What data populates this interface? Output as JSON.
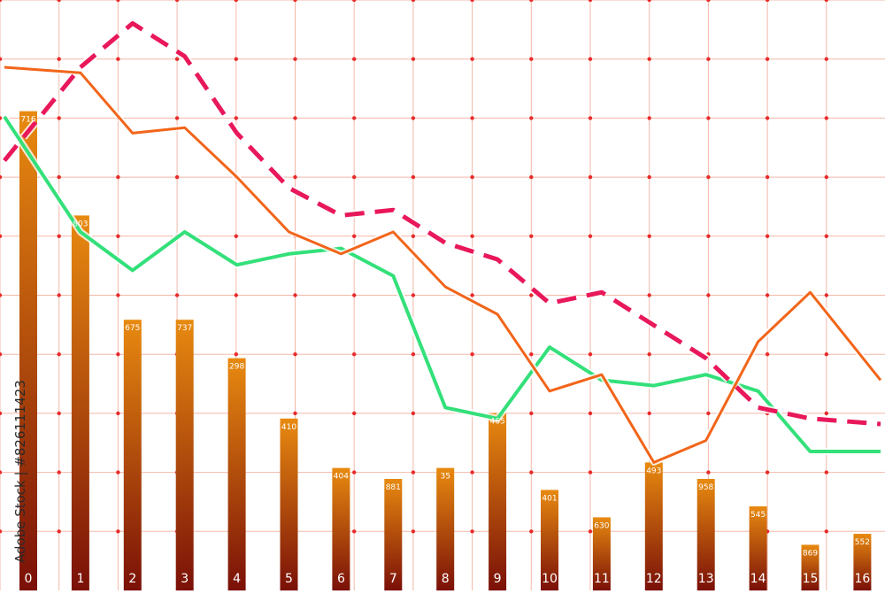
{
  "watermark": "Adobe Stock | #826111423",
  "colors": {
    "grid": "#f4b8a8",
    "gridDot": "#e82a2a",
    "barTop": "#e88a10",
    "barBottom": "#7a1008",
    "lineGreen": "#33e07a",
    "lineOrange": "#f2651a",
    "lineDashed": "#e8185a"
  },
  "chart_data": {
    "type": "bar",
    "categories": [
      "0",
      "1",
      "2",
      "3",
      "4",
      "5",
      "6",
      "7",
      "8",
      "9",
      "10",
      "11",
      "12",
      "13",
      "14",
      "15",
      "16"
    ],
    "values": [
      716,
      803,
      675,
      737,
      298,
      410,
      404,
      881,
      35,
      465,
      401,
      630,
      493,
      958,
      545,
      869,
      552
    ],
    "series": [
      {
        "values": [
          716,
          803,
          675,
          737,
          298,
          410,
          404,
          881,
          35,
          465,
          401,
          630,
          493,
          958,
          545,
          869,
          552
        ],
        "bar_height_fraction": [
          0.82,
          0.63,
          0.44,
          0.44,
          0.37,
          0.26,
          0.17,
          0.15,
          0.17,
          0.27,
          0.13,
          0.08,
          0.18,
          0.15,
          0.1,
          0.03,
          0.05
        ]
      },
      {
        "style": "solid-green",
        "points": [
          [
            0,
            0.81
          ],
          [
            1,
            0.6
          ],
          [
            2,
            0.53
          ],
          [
            3,
            0.6
          ],
          [
            4,
            0.54
          ],
          [
            5,
            0.56
          ],
          [
            6,
            0.57
          ],
          [
            7,
            0.52
          ],
          [
            8,
            0.28
          ],
          [
            9,
            0.26
          ],
          [
            10,
            0.39
          ],
          [
            11,
            0.33
          ],
          [
            12,
            0.32
          ],
          [
            13,
            0.34
          ],
          [
            14,
            0.31
          ],
          [
            15,
            0.2
          ],
          [
            16,
            0.2
          ]
        ]
      },
      {
        "style": "solid-orange",
        "points": [
          [
            0,
            0.9
          ],
          [
            1,
            0.89
          ],
          [
            2,
            0.78
          ],
          [
            3,
            0.79
          ],
          [
            4,
            0.7
          ],
          [
            5,
            0.6
          ],
          [
            6,
            0.56
          ],
          [
            7,
            0.6
          ],
          [
            8,
            0.5
          ],
          [
            9,
            0.45
          ],
          [
            10,
            0.31
          ],
          [
            11,
            0.34
          ],
          [
            12,
            0.18
          ],
          [
            13,
            0.22
          ],
          [
            14,
            0.4
          ],
          [
            15,
            0.49
          ],
          [
            16,
            0.33
          ]
        ]
      },
      {
        "style": "dashed-pink",
        "points": [
          [
            0,
            0.73
          ],
          [
            1,
            0.9
          ],
          [
            2,
            0.98
          ],
          [
            3,
            0.92
          ],
          [
            4,
            0.78
          ],
          [
            5,
            0.68
          ],
          [
            6,
            0.63
          ],
          [
            7,
            0.64
          ],
          [
            8,
            0.58
          ],
          [
            9,
            0.55
          ],
          [
            10,
            0.47
          ],
          [
            11,
            0.49
          ],
          [
            12,
            0.43
          ],
          [
            13,
            0.37
          ],
          [
            14,
            0.28
          ],
          [
            15,
            0.26
          ],
          [
            16,
            0.25
          ]
        ]
      }
    ],
    "grid": true
  }
}
